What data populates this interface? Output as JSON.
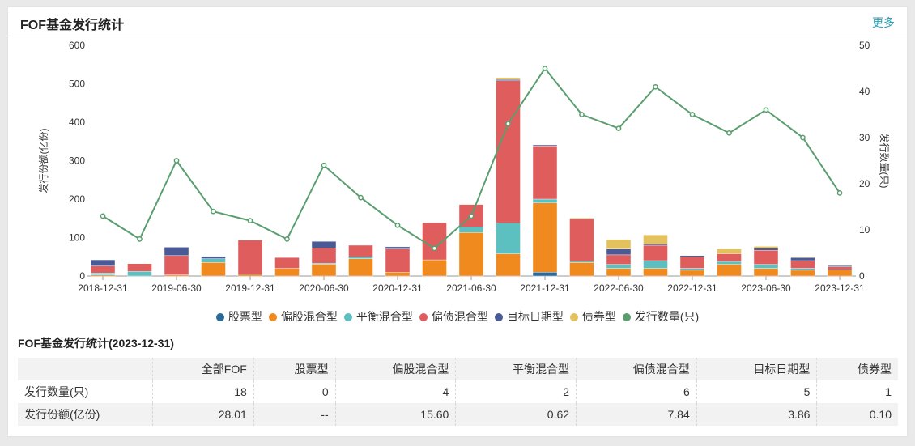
{
  "header": {
    "title": "FOF基金发行统计",
    "more_label": "更多"
  },
  "chart_data": {
    "type": "bar",
    "stacked": true,
    "secondary_type": "line",
    "categories": [
      "2018-12-31",
      "2019-03-31",
      "2019-06-30",
      "2019-09-30",
      "2019-12-31",
      "2020-03-31",
      "2020-06-30",
      "2020-09-30",
      "2020-12-31",
      "2021-03-31",
      "2021-06-30",
      "2021-09-30",
      "2021-12-31",
      "2022-03-31",
      "2022-06-30",
      "2022-09-30",
      "2022-12-31",
      "2023-03-31",
      "2023-06-30",
      "2023-09-30",
      "2023-12-31"
    ],
    "x_tick_labels": [
      "2018-12-31",
      "2019-06-30",
      "2019-12-31",
      "2020-06-30",
      "2020-12-31",
      "2021-06-30",
      "2021-12-31",
      "2022-06-30",
      "2022-12-31",
      "2023-06-30",
      "2023-12-31"
    ],
    "ylabel": "发行份额(亿份)",
    "ylabel_right": "发行数量(只)",
    "ylim": [
      0,
      600
    ],
    "yticks": [
      0,
      100,
      200,
      300,
      400,
      500,
      600
    ],
    "ylim_right": [
      0,
      50
    ],
    "yticks_right": [
      0,
      10,
      20,
      30,
      40,
      50
    ],
    "series": [
      {
        "name": "股票型",
        "color": "#2b6b9c",
        "values": [
          0,
          0,
          0,
          0,
          0,
          0,
          0,
          0,
          0,
          0,
          0,
          0,
          10,
          0,
          0,
          0,
          0,
          0,
          0,
          0,
          0
        ]
      },
      {
        "name": "偏股混合型",
        "color": "#f0891e",
        "values": [
          3,
          0,
          3,
          35,
          5,
          20,
          30,
          45,
          10,
          42,
          113,
          58,
          180,
          35,
          20,
          20,
          15,
          30,
          20,
          15,
          15.6
        ]
      },
      {
        "name": "平衡混合型",
        "color": "#5cc0c0",
        "values": [
          5,
          12,
          0,
          10,
          0,
          0,
          3,
          5,
          0,
          0,
          15,
          80,
          10,
          4,
          10,
          20,
          5,
          8,
          10,
          5,
          0.62
        ]
      },
      {
        "name": "偏债混合型",
        "color": "#e05d5e",
        "values": [
          18,
          20,
          50,
          0,
          88,
          28,
          40,
          30,
          60,
          97,
          58,
          370,
          138,
          110,
          25,
          40,
          30,
          20,
          37,
          20,
          7.84
        ]
      },
      {
        "name": "目标日期型",
        "color": "#4a5a96",
        "values": [
          16,
          0,
          22,
          6,
          0,
          0,
          17,
          0,
          6,
          0,
          0,
          3,
          3,
          0,
          15,
          3,
          3,
          0,
          5,
          8,
          3.86
        ]
      },
      {
        "name": "债券型",
        "color": "#e2c15e",
        "values": [
          0,
          0,
          0,
          0,
          0,
          0,
          0,
          0,
          0,
          0,
          0,
          5,
          0,
          2,
          25,
          24,
          0,
          12,
          5,
          2,
          0.1
        ]
      }
    ],
    "line_series": {
      "name": "发行数量(只)",
      "color": "#5a9e6f",
      "values": [
        13,
        8,
        25,
        14,
        12,
        8,
        24,
        17,
        11,
        6,
        13,
        33,
        45,
        35,
        32,
        41,
        35,
        31,
        36,
        30,
        18
      ]
    },
    "legend_position": "bottom",
    "grid": false
  },
  "stats": {
    "title": "FOF基金发行统计(2023-12-31)",
    "columns": [
      "",
      "全部FOF",
      "股票型",
      "偏股混合型",
      "平衡混合型",
      "偏债混合型",
      "目标日期型",
      "债券型"
    ],
    "rows": [
      [
        "发行数量(只)",
        "18",
        "0",
        "4",
        "2",
        "6",
        "5",
        "1"
      ],
      [
        "发行份额(亿份)",
        "28.01",
        "--",
        "15.60",
        "0.62",
        "7.84",
        "3.86",
        "0.10"
      ]
    ]
  }
}
